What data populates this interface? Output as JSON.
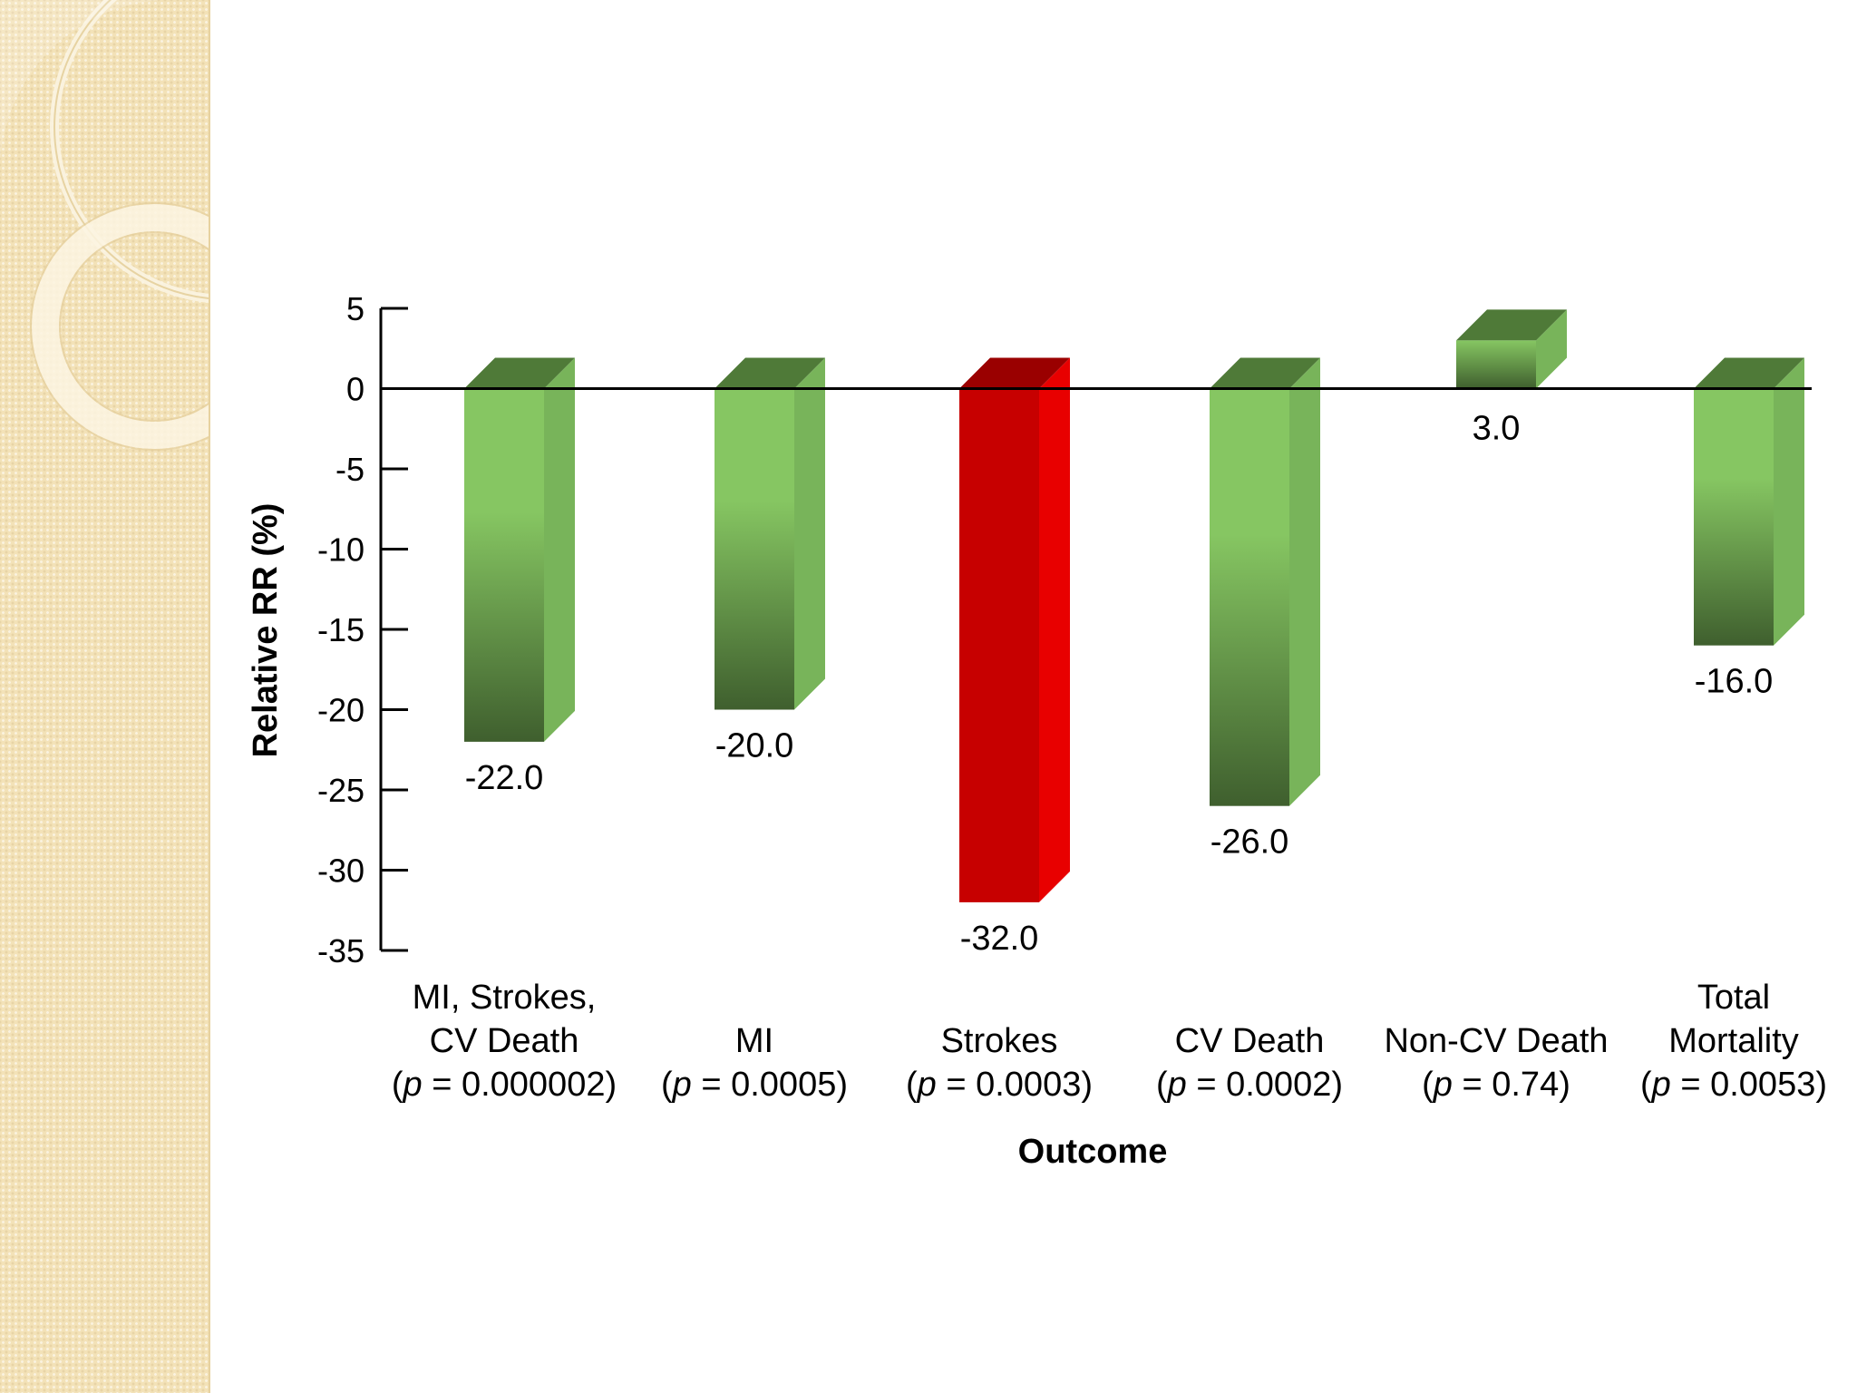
{
  "chart_data": {
    "type": "bar",
    "title": "",
    "xlabel": "Outcome",
    "ylabel": "Relative RR (%)",
    "ylim": [
      -35,
      5
    ],
    "yticks": [
      "5",
      "0",
      "-5",
      "-10",
      "-15",
      "-20",
      "-25",
      "-30",
      "-35"
    ],
    "categories": [
      {
        "lines": [
          [
            "MI, Strokes,"
          ],
          [
            "CV Death"
          ],
          [
            "(",
            "p",
            " = 0.000002)"
          ]
        ]
      },
      {
        "lines": [
          [
            "MI"
          ],
          [
            "(",
            "p",
            " = 0.0005)"
          ]
        ]
      },
      {
        "lines": [
          [
            "Strokes"
          ],
          [
            "(",
            "p",
            " = 0.0003)"
          ]
        ]
      },
      {
        "lines": [
          [
            "CV Death"
          ],
          [
            "(",
            "p",
            " = 0.0002)"
          ]
        ]
      },
      {
        "lines": [
          [
            "Non-CV Death"
          ],
          [
            "(",
            "p",
            " = 0.74)"
          ]
        ]
      },
      {
        "lines": [
          [
            "Total"
          ],
          [
            "Mortality"
          ],
          [
            "(",
            "p",
            " = 0.0053)"
          ]
        ]
      }
    ],
    "values": [
      -22.0,
      -20.0,
      -32.0,
      -26.0,
      3.0,
      -16.0
    ],
    "value_labels": [
      "-22.0",
      "-20.0",
      "-32.0",
      "-26.0",
      "3.0",
      "-16.0"
    ],
    "highlight_index": 2,
    "grid": false,
    "legend": "none"
  },
  "colors": {
    "bar_light": "#86c662",
    "bar_dark": "#3f5f2e",
    "bar_side": "#78b45a",
    "bar_top": "#4f7a38",
    "highlight_front": "#c70000",
    "highlight_side": "#e80000",
    "highlight_top": "#9a0000",
    "axis": "#000000",
    "side_panel": "#f3e2b8"
  }
}
